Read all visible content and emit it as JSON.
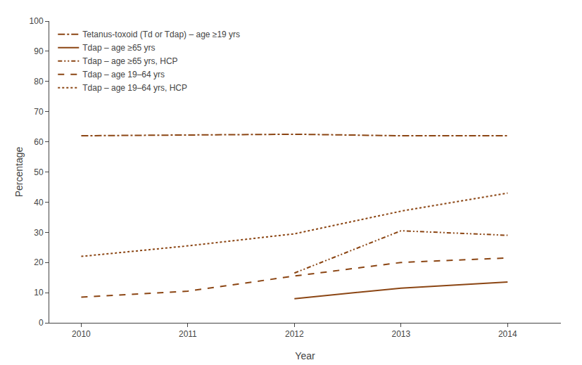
{
  "chart_data": {
    "type": "line",
    "x": [
      2010,
      2011,
      2012,
      2013,
      2014
    ],
    "series": [
      {
        "name": "Tetanus-toxoid (Td or Tdap) – age ≥19 yrs",
        "values": [
          62.0,
          62.3,
          62.5,
          62.0,
          62.0
        ],
        "line_style": "dashdot"
      },
      {
        "name": "Tdap – age ≥65 yrs",
        "values": [
          null,
          null,
          8.0,
          11.5,
          13.5
        ],
        "line_style": "solid"
      },
      {
        "name": "Tdap – age ≥65 yrs, HCP",
        "values": [
          null,
          null,
          16.5,
          30.5,
          29.0
        ],
        "line_style": "dashdotdot"
      },
      {
        "name": "Tdap – age 19–64 yrs",
        "values": [
          8.5,
          10.5,
          15.5,
          20.0,
          21.5
        ],
        "line_style": "dashed"
      },
      {
        "name": "Tdap – age 19–64 yrs, HCP",
        "values": [
          22.0,
          25.5,
          29.5,
          37.0,
          43.0
        ],
        "line_style": "dotted"
      }
    ],
    "color": "#8B4513",
    "xlabel": "Year",
    "ylabel": "Percentage",
    "xlim": [
      2009.7,
      2014.5
    ],
    "xticks": [
      2010,
      2011,
      2012,
      2013,
      2014
    ],
    "ylim": [
      0,
      100
    ],
    "yticks": [
      0,
      10,
      20,
      30,
      40,
      50,
      60,
      70,
      80,
      90,
      100
    ],
    "grid": false,
    "legend": "upper left"
  }
}
